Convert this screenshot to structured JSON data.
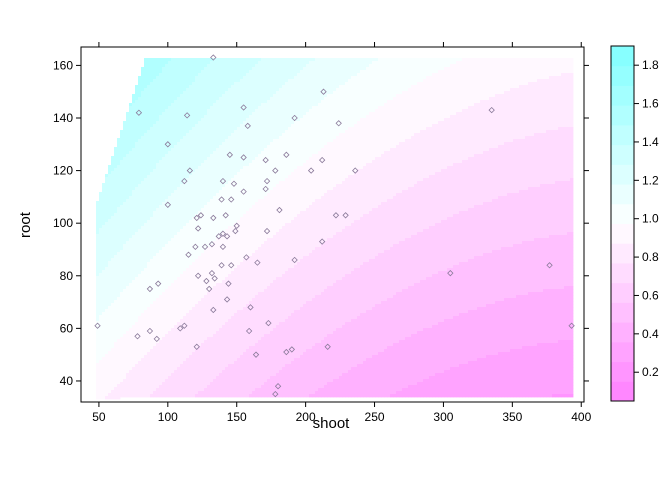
{
  "chart_data": {
    "type": "heatmap",
    "title": "",
    "xlabel": "shoot",
    "ylabel": "root",
    "xlim": [
      37,
      402
    ],
    "ylim": [
      32,
      167
    ],
    "x_ticks": [
      50,
      100,
      150,
      200,
      250,
      300,
      350,
      400
    ],
    "y_ticks": [
      40,
      60,
      80,
      100,
      120,
      140,
      160
    ],
    "colorbar": {
      "range": [
        0.05,
        1.9
      ],
      "ticks": [
        0.2,
        0.4,
        0.6,
        0.8,
        1.0,
        1.2,
        1.4,
        1.6,
        1.8
      ],
      "tick_labels": [
        "0.2",
        "0.4",
        "0.6",
        "0.8",
        "1.0",
        "1.2",
        "1.4",
        "1.6",
        "1.8"
      ],
      "low_color": "#ff80ff",
      "high_color": "#80ffff",
      "levels": 18
    },
    "surface_domain": {
      "x": [
        48,
        393
      ],
      "y": [
        34,
        163
      ]
    },
    "grid": false,
    "legend": "colorbar-right",
    "points": [
      {
        "x": 133,
        "y": 163
      },
      {
        "x": 79,
        "y": 142
      },
      {
        "x": 114,
        "y": 141
      },
      {
        "x": 335,
        "y": 143
      },
      {
        "x": 155,
        "y": 144
      },
      {
        "x": 213,
        "y": 150
      },
      {
        "x": 192,
        "y": 140
      },
      {
        "x": 158,
        "y": 137
      },
      {
        "x": 224,
        "y": 138
      },
      {
        "x": 100,
        "y": 130
      },
      {
        "x": 145,
        "y": 126
      },
      {
        "x": 186,
        "y": 126
      },
      {
        "x": 155,
        "y": 125
      },
      {
        "x": 171,
        "y": 124
      },
      {
        "x": 212,
        "y": 124
      },
      {
        "x": 116,
        "y": 120
      },
      {
        "x": 178,
        "y": 120
      },
      {
        "x": 204,
        "y": 120
      },
      {
        "x": 236,
        "y": 120
      },
      {
        "x": 112,
        "y": 116
      },
      {
        "x": 172,
        "y": 116
      },
      {
        "x": 140,
        "y": 116
      },
      {
        "x": 148,
        "y": 115
      },
      {
        "x": 171,
        "y": 113
      },
      {
        "x": 155,
        "y": 112
      },
      {
        "x": 146,
        "y": 109
      },
      {
        "x": 139,
        "y": 109
      },
      {
        "x": 100,
        "y": 107
      },
      {
        "x": 181,
        "y": 105
      },
      {
        "x": 124,
        "y": 103
      },
      {
        "x": 142,
        "y": 103
      },
      {
        "x": 121,
        "y": 102
      },
      {
        "x": 133,
        "y": 102
      },
      {
        "x": 222,
        "y": 103
      },
      {
        "x": 229,
        "y": 103
      },
      {
        "x": 150,
        "y": 99
      },
      {
        "x": 122,
        "y": 98
      },
      {
        "x": 149,
        "y": 97
      },
      {
        "x": 140,
        "y": 96
      },
      {
        "x": 172,
        "y": 97
      },
      {
        "x": 137,
        "y": 95
      },
      {
        "x": 143,
        "y": 95
      },
      {
        "x": 132,
        "y": 92
      },
      {
        "x": 120,
        "y": 91
      },
      {
        "x": 127,
        "y": 91
      },
      {
        "x": 140,
        "y": 91
      },
      {
        "x": 212,
        "y": 93
      },
      {
        "x": 115,
        "y": 88
      },
      {
        "x": 157,
        "y": 87
      },
      {
        "x": 192,
        "y": 86
      },
      {
        "x": 165,
        "y": 85
      },
      {
        "x": 139,
        "y": 84
      },
      {
        "x": 146,
        "y": 84
      },
      {
        "x": 132,
        "y": 81
      },
      {
        "x": 122,
        "y": 80
      },
      {
        "x": 305,
        "y": 81
      },
      {
        "x": 377,
        "y": 84
      },
      {
        "x": 134,
        "y": 79
      },
      {
        "x": 128,
        "y": 78
      },
      {
        "x": 93,
        "y": 77
      },
      {
        "x": 144,
        "y": 77
      },
      {
        "x": 87,
        "y": 75
      },
      {
        "x": 130,
        "y": 75
      },
      {
        "x": 143,
        "y": 71
      },
      {
        "x": 160,
        "y": 68
      },
      {
        "x": 133,
        "y": 67
      },
      {
        "x": 173,
        "y": 62
      },
      {
        "x": 112,
        "y": 61
      },
      {
        "x": 109,
        "y": 60
      },
      {
        "x": 49,
        "y": 61
      },
      {
        "x": 393,
        "y": 61
      },
      {
        "x": 159,
        "y": 59
      },
      {
        "x": 87,
        "y": 59
      },
      {
        "x": 78,
        "y": 57
      },
      {
        "x": 92,
        "y": 56
      },
      {
        "x": 121,
        "y": 53
      },
      {
        "x": 216,
        "y": 53
      },
      {
        "x": 190,
        "y": 52
      },
      {
        "x": 186,
        "y": 51
      },
      {
        "x": 164,
        "y": 50
      },
      {
        "x": 180,
        "y": 38
      },
      {
        "x": 178,
        "y": 35
      }
    ]
  }
}
